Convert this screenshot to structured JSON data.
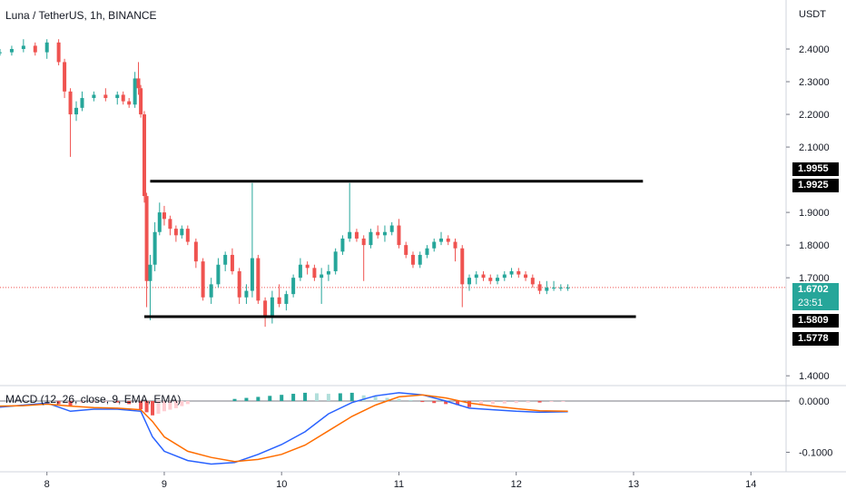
{
  "header": {
    "title": "Luna / TetherUS, 1h, BINANCE",
    "unit": "USDT"
  },
  "macd_panel": {
    "title": "MACD (12, 26, close, 9, EMA, EMA)"
  },
  "price_tags": {
    "upper_a": "1.9955",
    "upper_b": "1.9925",
    "last_price": "1.6702",
    "countdown": "23:51",
    "lower_a": "1.5809",
    "lower_b": "1.5778"
  },
  "colors": {
    "up": "#26a69a",
    "down": "#ef5350",
    "macd_line": "#2962ff",
    "signal_line": "#ff6d00",
    "hist_up_strong": "#26a69a",
    "hist_up_weak": "#b2dfdb",
    "hist_down_strong": "#ef5350",
    "hist_down_weak": "#ffcdd2",
    "drawn_lines": "#000000"
  },
  "chart_data": [
    {
      "type": "candlestick",
      "title": "Luna / TetherUS, 1h, BINANCE",
      "ylabel": "USDT",
      "x_tick_labels": [
        "8",
        "9",
        "10",
        "11",
        "12",
        "13",
        "14"
      ],
      "x_tick_days": [
        8,
        9,
        10,
        11,
        12,
        13,
        14
      ],
      "y_tick_labels": [
        "2.4000",
        "2.3000",
        "2.2000",
        "2.1000",
        "1.9000",
        "1.8000",
        "1.7000",
        "1.4000"
      ],
      "y_tick_values": [
        2.4,
        2.3,
        2.2,
        2.1,
        1.9,
        1.8,
        1.7,
        1.4
      ],
      "ylim": [
        1.37,
        2.55
      ],
      "xlim": [
        7.6,
        14.3
      ],
      "last_price": 1.6702,
      "horizontal_lines": [
        {
          "from_day": 8.88,
          "to_day": 13.08,
          "price": 1.9955
        },
        {
          "from_day": 8.83,
          "to_day": 13.02,
          "price": 1.5809
        }
      ],
      "candles": [
        [
          7.6,
          2.39,
          2.4,
          2.38,
          2.39
        ],
        [
          7.7,
          2.39,
          2.41,
          2.38,
          2.4
        ],
        [
          7.8,
          2.4,
          2.43,
          2.39,
          2.41
        ],
        [
          7.9,
          2.41,
          2.42,
          2.38,
          2.39
        ],
        [
          8.0,
          2.39,
          2.43,
          2.37,
          2.42
        ],
        [
          8.1,
          2.42,
          2.43,
          2.35,
          2.36
        ],
        [
          8.15,
          2.36,
          2.37,
          2.25,
          2.27
        ],
        [
          8.2,
          2.27,
          2.28,
          2.07,
          2.2
        ],
        [
          8.25,
          2.2,
          2.24,
          2.18,
          2.22
        ],
        [
          8.3,
          2.22,
          2.27,
          2.21,
          2.25
        ],
        [
          8.4,
          2.25,
          2.27,
          2.24,
          2.26
        ],
        [
          8.5,
          2.26,
          2.28,
          2.24,
          2.25
        ],
        [
          8.6,
          2.25,
          2.27,
          2.23,
          2.26
        ],
        [
          8.65,
          2.26,
          2.27,
          2.23,
          2.24
        ],
        [
          8.7,
          2.24,
          2.25,
          2.22,
          2.23
        ],
        [
          8.75,
          2.23,
          2.33,
          2.22,
          2.31
        ],
        [
          8.78,
          2.31,
          2.36,
          2.26,
          2.28
        ],
        [
          8.8,
          2.28,
          2.29,
          2.19,
          2.2
        ],
        [
          8.83,
          2.2,
          2.21,
          1.93,
          1.95
        ],
        [
          8.85,
          1.95,
          1.96,
          1.61,
          1.69
        ],
        [
          8.88,
          1.69,
          1.77,
          1.57,
          1.74
        ],
        [
          8.92,
          1.74,
          1.87,
          1.72,
          1.84
        ],
        [
          8.96,
          1.84,
          1.93,
          1.83,
          1.9
        ],
        [
          9.0,
          1.9,
          1.92,
          1.86,
          1.88
        ],
        [
          9.05,
          1.88,
          1.89,
          1.83,
          1.85
        ],
        [
          9.1,
          1.85,
          1.86,
          1.81,
          1.83
        ],
        [
          9.15,
          1.83,
          1.86,
          1.82,
          1.85
        ],
        [
          9.2,
          1.85,
          1.86,
          1.8,
          1.81
        ],
        [
          9.27,
          1.81,
          1.82,
          1.73,
          1.75
        ],
        [
          9.33,
          1.75,
          1.76,
          1.63,
          1.64
        ],
        [
          9.4,
          1.64,
          1.7,
          1.62,
          1.68
        ],
        [
          9.46,
          1.68,
          1.76,
          1.67,
          1.74
        ],
        [
          9.52,
          1.74,
          1.78,
          1.72,
          1.77
        ],
        [
          9.58,
          1.77,
          1.79,
          1.71,
          1.72
        ],
        [
          9.64,
          1.72,
          1.73,
          1.62,
          1.64
        ],
        [
          9.7,
          1.64,
          1.68,
          1.62,
          1.66
        ],
        [
          9.75,
          1.66,
          1.99,
          1.64,
          1.76
        ],
        [
          9.8,
          1.76,
          1.77,
          1.62,
          1.63
        ],
        [
          9.86,
          1.63,
          1.64,
          1.55,
          1.58
        ],
        [
          9.92,
          1.58,
          1.66,
          1.56,
          1.64
        ],
        [
          9.98,
          1.64,
          1.68,
          1.61,
          1.62
        ],
        [
          10.04,
          1.62,
          1.66,
          1.6,
          1.65
        ],
        [
          10.1,
          1.65,
          1.71,
          1.64,
          1.7
        ],
        [
          10.16,
          1.7,
          1.76,
          1.69,
          1.74
        ],
        [
          10.22,
          1.74,
          1.75,
          1.71,
          1.73
        ],
        [
          10.28,
          1.73,
          1.74,
          1.69,
          1.7
        ],
        [
          10.34,
          1.7,
          1.73,
          1.62,
          1.71
        ],
        [
          10.4,
          1.71,
          1.74,
          1.69,
          1.72
        ],
        [
          10.46,
          1.72,
          1.79,
          1.71,
          1.78
        ],
        [
          10.52,
          1.78,
          1.83,
          1.77,
          1.82
        ],
        [
          10.58,
          1.82,
          1.99,
          1.81,
          1.84
        ],
        [
          10.64,
          1.84,
          1.85,
          1.81,
          1.82
        ],
        [
          10.7,
          1.82,
          1.83,
          1.69,
          1.8
        ],
        [
          10.76,
          1.8,
          1.85,
          1.79,
          1.84
        ],
        [
          10.82,
          1.84,
          1.86,
          1.82,
          1.83
        ],
        [
          10.88,
          1.83,
          1.86,
          1.81,
          1.84
        ],
        [
          10.94,
          1.84,
          1.87,
          1.83,
          1.86
        ],
        [
          11.0,
          1.86,
          1.88,
          1.79,
          1.8
        ],
        [
          11.06,
          1.8,
          1.81,
          1.76,
          1.77
        ],
        [
          11.12,
          1.77,
          1.78,
          1.73,
          1.74
        ],
        [
          11.18,
          1.74,
          1.78,
          1.73,
          1.77
        ],
        [
          11.24,
          1.77,
          1.8,
          1.76,
          1.79
        ],
        [
          11.3,
          1.79,
          1.82,
          1.78,
          1.81
        ],
        [
          11.36,
          1.81,
          1.84,
          1.8,
          1.82
        ],
        [
          11.42,
          1.82,
          1.83,
          1.8,
          1.81
        ],
        [
          11.48,
          1.81,
          1.82,
          1.75,
          1.79
        ],
        [
          11.54,
          1.79,
          1.8,
          1.61,
          1.68
        ],
        [
          11.6,
          1.68,
          1.71,
          1.66,
          1.7
        ],
        [
          11.66,
          1.7,
          1.72,
          1.68,
          1.71
        ],
        [
          11.72,
          1.71,
          1.72,
          1.69,
          1.7
        ],
        [
          11.78,
          1.7,
          1.71,
          1.68,
          1.69
        ],
        [
          11.84,
          1.69,
          1.71,
          1.68,
          1.7
        ],
        [
          11.9,
          1.7,
          1.72,
          1.69,
          1.71
        ],
        [
          11.96,
          1.71,
          1.73,
          1.7,
          1.72
        ],
        [
          12.02,
          1.72,
          1.73,
          1.7,
          1.71
        ],
        [
          12.08,
          1.71,
          1.72,
          1.69,
          1.7
        ],
        [
          12.14,
          1.7,
          1.71,
          1.67,
          1.68
        ],
        [
          12.2,
          1.68,
          1.69,
          1.65,
          1.66
        ],
        [
          12.26,
          1.66,
          1.69,
          1.65,
          1.67
        ],
        [
          12.32,
          1.67,
          1.69,
          1.66,
          1.67
        ],
        [
          12.38,
          1.67,
          1.68,
          1.66,
          1.67
        ],
        [
          12.44,
          1.67,
          1.68,
          1.66,
          1.67
        ]
      ]
    },
    {
      "type": "macd",
      "title": "MACD (12, 26, close, 9, EMA, EMA)",
      "y_tick_labels": [
        "0.0000",
        "-0.1000"
      ],
      "y_tick_values": [
        0.0,
        -0.1
      ],
      "ylim": [
        -0.138,
        0.03
      ],
      "series": [
        {
          "name": "MACD",
          "x": [
            7.6,
            7.8,
            8.0,
            8.2,
            8.4,
            8.6,
            8.8,
            8.9,
            9.0,
            9.2,
            9.4,
            9.6,
            9.8,
            10.0,
            10.2,
            10.4,
            10.6,
            10.8,
            11.0,
            11.2,
            11.4,
            11.6,
            11.8,
            12.0,
            12.2,
            12.44
          ],
          "values": [
            -0.012,
            -0.008,
            -0.004,
            -0.02,
            -0.016,
            -0.016,
            -0.02,
            -0.07,
            -0.098,
            -0.116,
            -0.123,
            -0.12,
            -0.104,
            -0.085,
            -0.06,
            -0.025,
            -0.003,
            0.01,
            0.016,
            0.012,
            0.0,
            -0.014,
            -0.017,
            -0.02,
            -0.022,
            -0.021
          ]
        },
        {
          "name": "Signal",
          "x": [
            7.6,
            7.8,
            8.0,
            8.2,
            8.4,
            8.6,
            8.8,
            8.9,
            9.0,
            9.2,
            9.4,
            9.6,
            9.8,
            10.0,
            10.2,
            10.4,
            10.6,
            10.8,
            11.0,
            11.2,
            11.4,
            11.6,
            11.8,
            12.0,
            12.2,
            12.44
          ],
          "values": [
            -0.01,
            -0.009,
            -0.006,
            -0.01,
            -0.013,
            -0.014,
            -0.017,
            -0.04,
            -0.07,
            -0.098,
            -0.11,
            -0.118,
            -0.114,
            -0.104,
            -0.086,
            -0.058,
            -0.03,
            -0.008,
            0.008,
            0.012,
            0.006,
            -0.004,
            -0.01,
            -0.015,
            -0.019,
            -0.02
          ]
        },
        {
          "name": "Histogram",
          "x": [
            8.1,
            8.2,
            8.3,
            8.4,
            8.5,
            8.6,
            8.7,
            8.8,
            8.85,
            8.9,
            8.95,
            9.0,
            9.05,
            9.1,
            9.15,
            9.2,
            9.6,
            9.7,
            9.8,
            9.9,
            10.0,
            10.1,
            10.2,
            10.3,
            10.4,
            10.5,
            10.6,
            10.7,
            10.8,
            10.9,
            11.0,
            11.1,
            11.2,
            11.3,
            11.4,
            11.5,
            11.6,
            11.7,
            11.8,
            11.9,
            12.0,
            12.1,
            12.2,
            12.3,
            12.4
          ],
          "values": [
            -0.006,
            -0.01,
            -0.004,
            -0.003,
            -0.002,
            -0.003,
            -0.006,
            -0.016,
            -0.022,
            -0.028,
            -0.025,
            -0.02,
            -0.017,
            -0.014,
            -0.01,
            -0.006,
            0.004,
            0.006,
            0.008,
            0.01,
            0.012,
            0.014,
            0.016,
            0.015,
            0.014,
            0.015,
            0.016,
            0.011,
            0.009,
            0.006,
            0.004,
            0.002,
            -0.002,
            -0.004,
            -0.006,
            -0.008,
            -0.012,
            -0.008,
            -0.006,
            -0.005,
            -0.004,
            -0.003,
            -0.003,
            -0.002,
            -0.001
          ]
        }
      ]
    }
  ]
}
